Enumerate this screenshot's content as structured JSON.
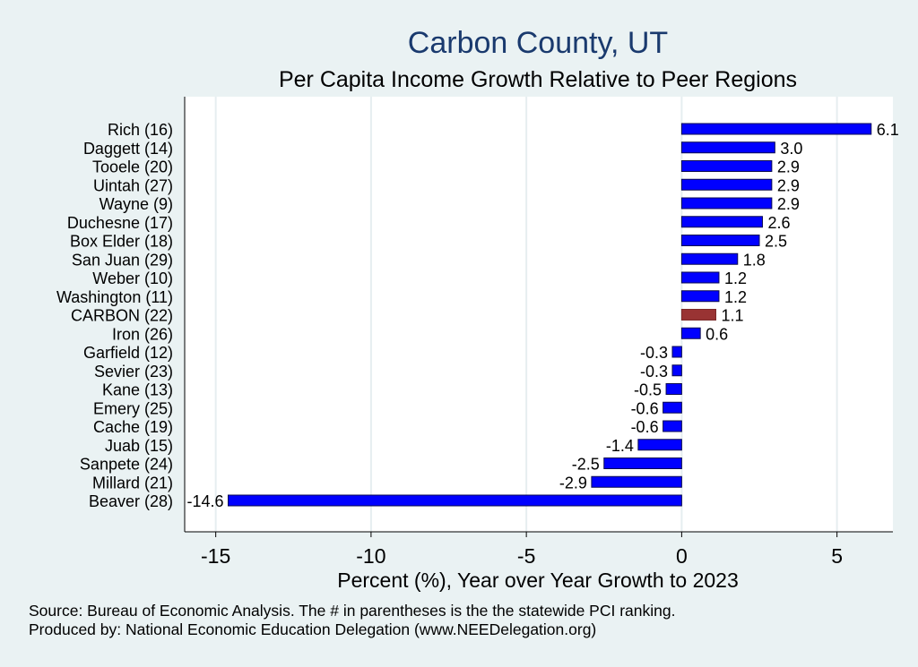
{
  "chart_data": {
    "type": "bar",
    "orientation": "horizontal",
    "title": "Carbon County, UT",
    "subtitle": "Per Capita Income Growth Relative to Peer Regions",
    "xlabel": "Percent (%), Year over Year Growth to 2023",
    "ylabel": "",
    "xlim": [
      -16,
      6.8
    ],
    "xticks": [
      -15,
      -10,
      -5,
      0,
      5
    ],
    "grid": true,
    "categories": [
      "Rich (16)",
      "Daggett (14)",
      "Tooele (20)",
      "Uintah (27)",
      "Wayne  (9)",
      "Duchesne (17)",
      "Box Elder (18)",
      "San Juan (29)",
      "Weber (10)",
      "Washington (11)",
      "CARBON (22)",
      "Iron (26)",
      "Garfield (12)",
      "Sevier (23)",
      "Kane (13)",
      "Emery (25)",
      "Cache (19)",
      "Juab (15)",
      "Sanpete (24)",
      "Millard (21)",
      "Beaver (28)"
    ],
    "values": [
      6.1,
      3.0,
      2.9,
      2.9,
      2.9,
      2.6,
      2.5,
      1.8,
      1.2,
      1.2,
      1.1,
      0.6,
      -0.3,
      -0.3,
      -0.5,
      -0.6,
      -0.6,
      -1.4,
      -2.5,
      -2.9,
      -14.6
    ],
    "value_labels": [
      "6.1",
      "3.0",
      "2.9",
      "2.9",
      "2.9",
      "2.6",
      "2.5",
      "1.8",
      "1.2",
      "1.2",
      "1.1",
      "0.6",
      "-0.3",
      "-0.3",
      "-0.5",
      "-0.6",
      "-0.6",
      "-1.4",
      "-2.5",
      "-2.9",
      "-14.6"
    ],
    "highlight": "CARBON (22)",
    "colors": {
      "bar": "#0000ff",
      "highlight_bar": "#993333",
      "title": "#1a3a6e",
      "background": "#eaf2f3",
      "plot_background": "#ffffff",
      "grid": "#e6eef0"
    }
  },
  "footer": {
    "source": "Source: Bureau of Economic Analysis. The # in parentheses is the the statewide PCI ranking.",
    "produced": "Produced by: National Economic Education Delegation (www.NEEDelegation.org)"
  }
}
